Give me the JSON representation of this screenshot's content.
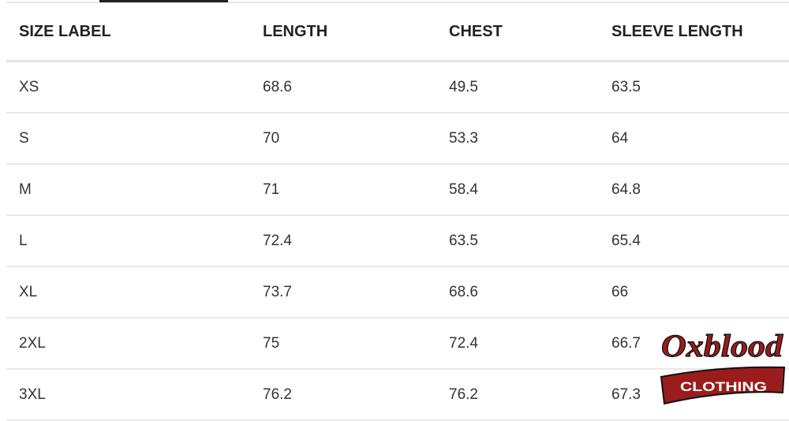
{
  "table": {
    "headers": [
      "SIZE LABEL",
      "LENGTH",
      "CHEST",
      "SLEEVE LENGTH"
    ],
    "rows": [
      [
        "XS",
        "68.6",
        "49.5",
        "63.5"
      ],
      [
        "S",
        "70",
        "53.3",
        "64"
      ],
      [
        "M",
        "71",
        "58.4",
        "64.8"
      ],
      [
        "L",
        "72.4",
        "63.5",
        "65.4"
      ],
      [
        "XL",
        "73.7",
        "68.6",
        "66"
      ],
      [
        "2XL",
        "75",
        "72.4",
        "66.7"
      ],
      [
        "3XL",
        "76.2",
        "76.2",
        "67.3"
      ]
    ]
  },
  "logo": {
    "text": "Oxblood",
    "subtext": "CLOTHING",
    "color": "#9b1c1c"
  }
}
